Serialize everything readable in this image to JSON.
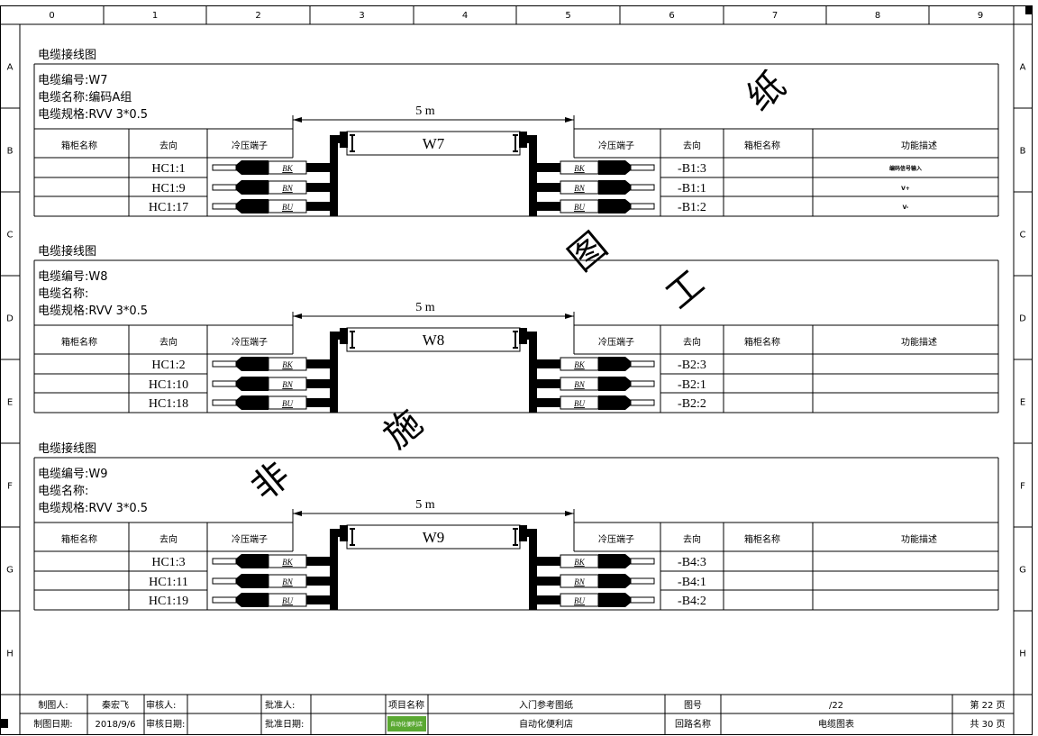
{
  "ruler": {
    "columns": [
      "0",
      "1",
      "2",
      "3",
      "4",
      "5",
      "6",
      "7",
      "8",
      "9"
    ],
    "rows": [
      "A",
      "B",
      "C",
      "D",
      "E",
      "F",
      "G",
      "H"
    ]
  },
  "table_headers": {
    "left": [
      "箱柜名称",
      "去向",
      "冷压端子"
    ],
    "right": [
      "冷压端子",
      "去向",
      "箱柜名称",
      "功能描述"
    ]
  },
  "sections": [
    {
      "title": "电缆接线图",
      "cable_no": "电缆编号:W7",
      "cable_name": "电缆名称:编码A组",
      "cable_spec": "电缆规格:RVV 3*0.5",
      "length": "5 m",
      "cable_label": "W7",
      "rows": [
        {
          "from": "HC1:1",
          "color": "BK",
          "to": "-B1:3",
          "desc": "编码信号输入"
        },
        {
          "from": "HC1:9",
          "color": "BN",
          "to": "-B1:1",
          "desc": "V+"
        },
        {
          "from": "HC1:17",
          "color": "BU",
          "to": "-B1:2",
          "desc": "V-"
        }
      ]
    },
    {
      "title": "电缆接线图",
      "cable_no": "电缆编号:W8",
      "cable_name": "电缆名称:",
      "cable_spec": "电缆规格:RVV 3*0.5",
      "length": "5 m",
      "cable_label": "W8",
      "rows": [
        {
          "from": "HC1:2",
          "color": "BK",
          "to": "-B2:3",
          "desc": ""
        },
        {
          "from": "HC1:10",
          "color": "BN",
          "to": "-B2:1",
          "desc": ""
        },
        {
          "from": "HC1:18",
          "color": "BU",
          "to": "-B2:2",
          "desc": ""
        }
      ]
    },
    {
      "title": "电缆接线图",
      "cable_no": "电缆编号:W9",
      "cable_name": "电缆名称:",
      "cable_spec": "电缆规格:RVV 3*0.5",
      "length": "5 m",
      "cable_label": "W9",
      "rows": [
        {
          "from": "HC1:3",
          "color": "BK",
          "to": "-B4:3",
          "desc": ""
        },
        {
          "from": "HC1:11",
          "color": "BN",
          "to": "-B4:1",
          "desc": ""
        },
        {
          "from": "HC1:19",
          "color": "BU",
          "to": "-B4:2",
          "desc": ""
        }
      ]
    }
  ],
  "watermark": [
    "非",
    "施",
    "工",
    "图",
    "纸"
  ],
  "title_block": {
    "drawn_by_label": "制图人:",
    "drawn_by": "秦宏飞",
    "reviewer_label": "审核人:",
    "approver_label": "批准人:",
    "project_label": "项目名称",
    "project": "入门参考图纸",
    "drawing_no_label": "图号",
    "drawing_no": "/22",
    "page": "第 22 页",
    "date_label": "制图日期:",
    "date": "2018/9/6",
    "review_date_label": "审核日期:",
    "approve_date_label": "批准日期:",
    "logo_text": "自动化便利店",
    "company": "自动化便利店",
    "circuit_label": "回路名称",
    "circuit": "电缆图表",
    "total": "共 30 页"
  },
  "colors": {
    "logo_green": "#5aa832"
  }
}
